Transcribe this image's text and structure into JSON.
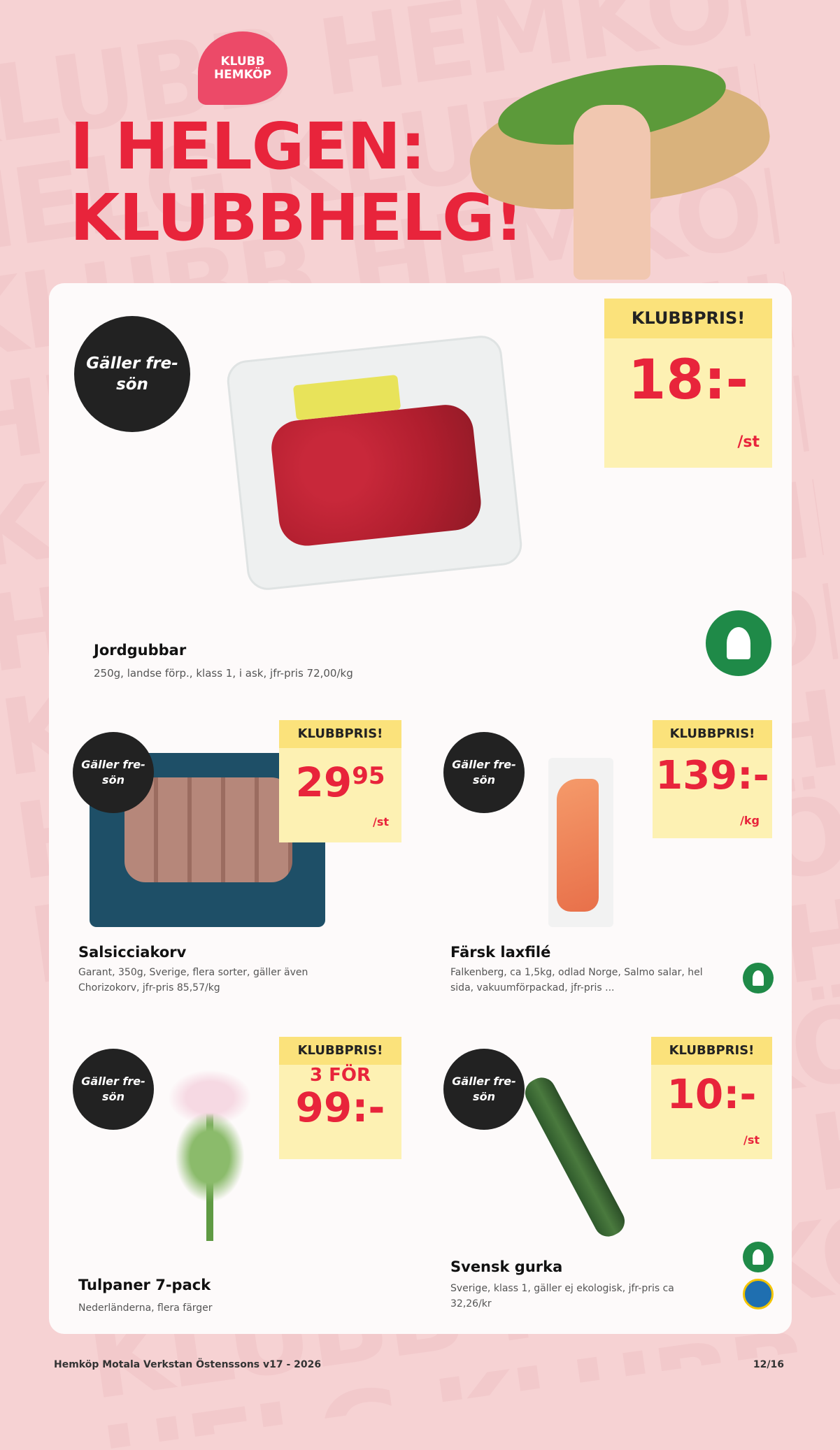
{
  "header": {
    "logo": "KLUBB HEMKÖP",
    "logo_line1": "KLUBB",
    "logo_line2": "HEMKÖP",
    "title_line1": "I HELGEN:",
    "title_line2": "KLUBBHELG!"
  },
  "colors": {
    "brand_red": "#e8243b",
    "background": "#f6d2d3",
    "price_yellow": "#fdf1b3",
    "member_green": "#1f8a48"
  },
  "products": [
    {
      "name": "Jordgubbar",
      "desc": "250g, landse förp., klass 1, i ask, jfr-pris 72,00/kg",
      "badge": "Gäller fre-sön",
      "price_header": "KLUBBPRIS!",
      "price": "18:-",
      "unit": "/st",
      "icon": "member-icon"
    },
    {
      "name": "Salsicciakorv",
      "desc": "Garant, 350g, Sverige, flera sorter, gäller även Chorizokorv, jfr-pris 85,57/kg",
      "badge": "Gäller fre-sön",
      "price_header": "KLUBBPRIS!",
      "price_main": "29",
      "price_cents": "95",
      "unit": "/st"
    },
    {
      "name": "Färsk laxfilé",
      "desc": "Falkenberg, ca 1,5kg, odlad Norge, Salmo salar, hel sida, vakuumförpackad, jfr-pris ...",
      "badge": "Gäller fre-sön",
      "price_header": "KLUBBPRIS!",
      "price": "139:-",
      "unit": "/kg",
      "icon": "member-icon"
    },
    {
      "name": "Tulpaner 7-pack",
      "desc": "Nederländerna, flera färger",
      "badge": "Gäller fre-sön",
      "price_header": "KLUBBPRIS!",
      "price_prefix": "3 FÖR",
      "price": "99:-"
    },
    {
      "name": "Svensk gurka",
      "desc": "Sverige, klass 1, gäller ej ekologisk, jfr-pris ca 32,26/kr",
      "badge": "Gäller fre-sön",
      "price_header": "KLUBBPRIS!",
      "price": "10:-",
      "unit": "/st",
      "icon": "member-icon",
      "icon2": "swedish-origin-icon"
    }
  ],
  "footer": {
    "text": "Hemköp Motala Verkstan Östenssons v17 - 2026",
    "page": "12/16"
  }
}
